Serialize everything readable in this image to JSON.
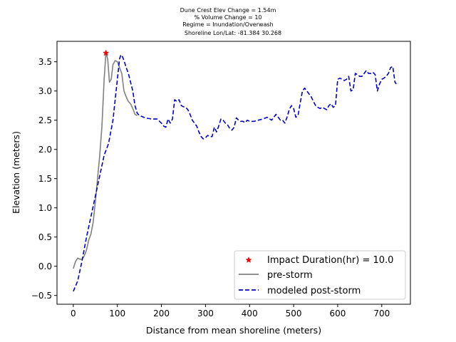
{
  "chart_data": {
    "type": "line",
    "title_lines": [
      "Dune Crest Elev Change = 1.54m",
      "% Volume Change = 10",
      "Regime = Inundation/Overwash",
      "Shoreline Lon/Lat: -81.384 30.268"
    ],
    "xlabel": "Distance from mean shoreline (meters)",
    "ylabel": "Elevation (meters)",
    "xlim": [
      -37,
      765
    ],
    "ylim": [
      -0.65,
      3.85
    ],
    "xticks": [
      0,
      100,
      200,
      300,
      400,
      500,
      600,
      700
    ],
    "yticks": [
      -0.5,
      0.0,
      0.5,
      1.0,
      1.5,
      2.0,
      2.5,
      3.0,
      3.5
    ],
    "legend_position": "lower-right",
    "grid": false,
    "series": [
      {
        "name": "Impact Duration(hr) = 10.0",
        "kind": "marker",
        "color": "#ff0000",
        "points": [
          [
            74,
            3.65
          ]
        ]
      },
      {
        "name": "pre-storm",
        "kind": "line",
        "style": "solid",
        "color": "#808080",
        "points": [
          [
            0,
            -0.04
          ],
          [
            5,
            0.08
          ],
          [
            10,
            0.14
          ],
          [
            15,
            0.12
          ],
          [
            20,
            0.12
          ],
          [
            25,
            0.18
          ],
          [
            30,
            0.28
          ],
          [
            35,
            0.45
          ],
          [
            40,
            0.55
          ],
          [
            45,
            0.75
          ],
          [
            50,
            1.1
          ],
          [
            55,
            1.5
          ],
          [
            60,
            1.9
          ],
          [
            65,
            2.4
          ],
          [
            70,
            3.2
          ],
          [
            74,
            3.65
          ],
          [
            78,
            3.55
          ],
          [
            82,
            3.15
          ],
          [
            86,
            3.2
          ],
          [
            90,
            3.45
          ],
          [
            95,
            3.52
          ],
          [
            100,
            3.5
          ],
          [
            105,
            3.4
          ],
          [
            110,
            3.3
          ],
          [
            115,
            3.0
          ],
          [
            120,
            2.9
          ],
          [
            125,
            2.82
          ],
          [
            130,
            2.78
          ],
          [
            135,
            2.7
          ],
          [
            140,
            2.6
          ],
          [
            145,
            2.58
          ]
        ]
      },
      {
        "name": "modeled post-storm",
        "kind": "line",
        "style": "dashed",
        "color": "#0000cc",
        "points": [
          [
            0,
            -0.43
          ],
          [
            10,
            -0.25
          ],
          [
            20,
            0.1
          ],
          [
            30,
            0.5
          ],
          [
            40,
            0.85
          ],
          [
            50,
            1.2
          ],
          [
            60,
            1.55
          ],
          [
            70,
            1.9
          ],
          [
            80,
            2.1
          ],
          [
            90,
            2.5
          ],
          [
            100,
            3.2
          ],
          [
            105,
            3.55
          ],
          [
            108,
            3.62
          ],
          [
            112,
            3.58
          ],
          [
            116,
            3.5
          ],
          [
            120,
            3.4
          ],
          [
            125,
            3.3
          ],
          [
            130,
            3.15
          ],
          [
            135,
            3.0
          ],
          [
            140,
            2.75
          ],
          [
            145,
            2.62
          ],
          [
            150,
            2.58
          ],
          [
            160,
            2.55
          ],
          [
            170,
            2.53
          ],
          [
            180,
            2.52
          ],
          [
            190,
            2.52
          ],
          [
            200,
            2.45
          ],
          [
            205,
            2.4
          ],
          [
            210,
            2.38
          ],
          [
            215,
            2.52
          ],
          [
            220,
            2.45
          ],
          [
            225,
            2.52
          ],
          [
            230,
            2.85
          ],
          [
            235,
            2.82
          ],
          [
            240,
            2.85
          ],
          [
            245,
            2.75
          ],
          [
            250,
            2.73
          ],
          [
            255,
            2.72
          ],
          [
            260,
            2.68
          ],
          [
            265,
            2.6
          ],
          [
            270,
            2.5
          ],
          [
            275,
            2.45
          ],
          [
            280,
            2.4
          ],
          [
            285,
            2.3
          ],
          [
            290,
            2.22
          ],
          [
            295,
            2.18
          ],
          [
            300,
            2.2
          ],
          [
            305,
            2.24
          ],
          [
            310,
            2.22
          ],
          [
            315,
            2.22
          ],
          [
            320,
            2.38
          ],
          [
            325,
            2.3
          ],
          [
            330,
            2.4
          ],
          [
            335,
            2.52
          ],
          [
            340,
            2.5
          ],
          [
            345,
            2.45
          ],
          [
            350,
            2.42
          ],
          [
            355,
            2.36
          ],
          [
            360,
            2.33
          ],
          [
            365,
            2.38
          ],
          [
            370,
            2.54
          ],
          [
            375,
            2.5
          ],
          [
            380,
            2.48
          ],
          [
            385,
            2.48
          ],
          [
            390,
            2.46
          ],
          [
            395,
            2.5
          ],
          [
            400,
            2.48
          ],
          [
            410,
            2.48
          ],
          [
            420,
            2.5
          ],
          [
            430,
            2.52
          ],
          [
            440,
            2.55
          ],
          [
            450,
            2.5
          ],
          [
            455,
            2.55
          ],
          [
            460,
            2.6
          ],
          [
            465,
            2.55
          ],
          [
            470,
            2.5
          ],
          [
            475,
            2.5
          ],
          [
            480,
            2.45
          ],
          [
            485,
            2.55
          ],
          [
            490,
            2.68
          ],
          [
            495,
            2.75
          ],
          [
            500,
            2.7
          ],
          [
            505,
            2.55
          ],
          [
            510,
            2.58
          ],
          [
            515,
            2.8
          ],
          [
            520,
            3.0
          ],
          [
            525,
            3.05
          ],
          [
            530,
            3.0
          ],
          [
            535,
            2.95
          ],
          [
            540,
            2.9
          ],
          [
            545,
            2.82
          ],
          [
            550,
            2.75
          ],
          [
            555,
            2.72
          ],
          [
            560,
            2.7
          ],
          [
            565,
            2.72
          ],
          [
            570,
            2.7
          ],
          [
            575,
            2.68
          ],
          [
            580,
            2.75
          ],
          [
            585,
            2.78
          ],
          [
            590,
            2.72
          ],
          [
            595,
            2.75
          ],
          [
            600,
            3.2
          ],
          [
            605,
            3.22
          ],
          [
            610,
            3.2
          ],
          [
            615,
            3.18
          ],
          [
            620,
            3.2
          ],
          [
            625,
            3.25
          ],
          [
            630,
            3.0
          ],
          [
            635,
            3.02
          ],
          [
            640,
            3.3
          ],
          [
            645,
            3.28
          ],
          [
            650,
            3.25
          ],
          [
            655,
            3.25
          ],
          [
            660,
            3.3
          ],
          [
            665,
            3.35
          ],
          [
            670,
            3.3
          ],
          [
            675,
            3.3
          ],
          [
            680,
            3.32
          ],
          [
            685,
            3.28
          ],
          [
            690,
            3.0
          ],
          [
            695,
            3.12
          ],
          [
            700,
            3.2
          ],
          [
            705,
            3.22
          ],
          [
            710,
            3.25
          ],
          [
            715,
            3.3
          ],
          [
            720,
            3.4
          ],
          [
            725,
            3.42
          ],
          [
            730,
            3.15
          ],
          [
            733,
            3.12
          ]
        ]
      }
    ]
  }
}
